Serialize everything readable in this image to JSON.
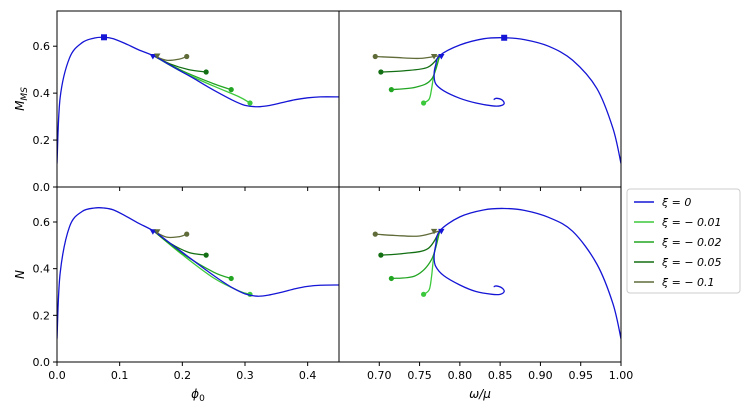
{
  "chart_data": {
    "type": "line",
    "layout": "2x2 grid, shared y per row, shared x per column",
    "colors": {
      "xi_0": "#1515d6",
      "xi_m0p01": "#3cc83c",
      "xi_m0p02": "#22a522",
      "xi_m0p05": "#136f13",
      "xi_m0p1": "#5f6b38"
    },
    "legend": {
      "placement": "right, between rows",
      "entries": [
        {
          "key": "xi_0",
          "label": "ξ = 0"
        },
        {
          "key": "xi_m0p01",
          "label": "ξ = − 0.01"
        },
        {
          "key": "xi_m0p02",
          "label": "ξ = − 0.02"
        },
        {
          "key": "xi_m0p05",
          "label": "ξ = − 0.05"
        },
        {
          "key": "xi_m0p1",
          "label": "ξ = − 0.1"
        }
      ]
    },
    "axes": {
      "phi0": {
        "label": "ϕ0",
        "xlim": [
          0,
          0.45
        ],
        "ticks": [
          "0.0",
          "0.1",
          "0.2",
          "0.3",
          "0.4"
        ],
        "tick_values": [
          0,
          0.1,
          0.2,
          0.3,
          0.4
        ]
      },
      "omega": {
        "label": "ω/μ",
        "xlim": [
          0.65,
          1.0
        ],
        "ticks": [
          "0.70",
          "0.75",
          "0.80",
          "0.85",
          "0.90",
          "0.95",
          "1.00"
        ],
        "tick_values": [
          0.7,
          0.75,
          0.8,
          0.85,
          0.9,
          0.95,
          1.0
        ]
      },
      "M": {
        "label": "M_MS",
        "ylim": [
          0,
          0.75
        ],
        "ticks": [
          "0.0",
          "0.2",
          "0.4",
          "0.6"
        ],
        "tick_values": [
          0,
          0.2,
          0.4,
          0.6
        ]
      },
      "N": {
        "label": "N",
        "ylim": [
          0,
          0.75
        ],
        "ticks": [
          "0.0",
          "0.2",
          "0.4",
          "0.6"
        ],
        "tick_values": [
          0,
          0.2,
          0.4,
          0.6
        ]
      }
    },
    "panels": [
      {
        "id": "top-left",
        "xaxis": "phi0",
        "yaxis": "M",
        "main_curve": {
          "key": "xi_0",
          "x": [
            0,
            0.005,
            0.02,
            0.04,
            0.06,
            0.075,
            0.09,
            0.11,
            0.13,
            0.155,
            0.18,
            0.2,
            0.22,
            0.24,
            0.26,
            0.28,
            0.3,
            0.32,
            0.34,
            0.36,
            0.38,
            0.4,
            0.42,
            0.45
          ],
          "y": [
            0.1,
            0.38,
            0.55,
            0.615,
            0.635,
            0.638,
            0.632,
            0.61,
            0.585,
            0.558,
            0.52,
            0.49,
            0.46,
            0.428,
            0.398,
            0.37,
            0.348,
            0.342,
            0.348,
            0.36,
            0.372,
            0.38,
            0.384,
            0.384
          ]
        },
        "branches": [
          {
            "key": "xi_m0p01",
            "x": [
              0.155,
              0.2,
              0.25,
              0.29,
              0.308
            ],
            "y": [
              0.558,
              0.49,
              0.43,
              0.385,
              0.358
            ]
          },
          {
            "key": "xi_m0p02",
            "x": [
              0.155,
              0.2,
              0.25,
              0.278
            ],
            "y": [
              0.558,
              0.495,
              0.44,
              0.415
            ]
          },
          {
            "key": "xi_m0p05",
            "x": [
              0.155,
              0.18,
              0.21,
              0.238
            ],
            "y": [
              0.558,
              0.525,
              0.5,
              0.49
            ]
          },
          {
            "key": "xi_m0p1",
            "x": [
              0.155,
              0.175,
              0.195,
              0.207
            ],
            "y": [
              0.558,
              0.54,
              0.545,
              0.556
            ]
          }
        ],
        "markers": [
          {
            "x": 0.075,
            "y": 0.638,
            "shape": "square",
            "key": "xi_0"
          },
          {
            "x": 0.153,
            "y": 0.556,
            "shape": "triangle",
            "key": "xi_0"
          },
          {
            "x": 0.16,
            "y": 0.558,
            "shape": "triangle",
            "key": "xi_m0p1"
          }
        ]
      },
      {
        "id": "top-right",
        "xaxis": "omega",
        "yaxis": "M",
        "main_curve": {
          "key": "xi_0",
          "x": [
            1.0,
            0.99,
            0.97,
            0.94,
            0.91,
            0.88,
            0.855,
            0.83,
            0.8,
            0.775,
            0.77,
            0.768,
            0.77,
            0.78,
            0.8,
            0.82,
            0.84,
            0.85,
            0.855,
            0.852,
            0.845,
            0.842
          ],
          "y": [
            0.1,
            0.25,
            0.42,
            0.54,
            0.6,
            0.628,
            0.636,
            0.632,
            0.605,
            0.56,
            0.52,
            0.48,
            0.44,
            0.41,
            0.378,
            0.358,
            0.346,
            0.346,
            0.356,
            0.372,
            0.378,
            0.372
          ]
        },
        "branches": [
          {
            "key": "xi_m0p01",
            "x": [
              0.775,
              0.768,
              0.765,
              0.762,
              0.755
            ],
            "y": [
              0.56,
              0.48,
              0.42,
              0.375,
              0.358
            ]
          },
          {
            "key": "xi_m0p02",
            "x": [
              0.775,
              0.765,
              0.745,
              0.715
            ],
            "y": [
              0.56,
              0.46,
              0.425,
              0.415
            ]
          },
          {
            "key": "xi_m0p05",
            "x": [
              0.775,
              0.76,
              0.73,
              0.702
            ],
            "y": [
              0.56,
              0.51,
              0.495,
              0.49
            ]
          },
          {
            "key": "xi_m0p1",
            "x": [
              0.775,
              0.75,
              0.72,
              0.695
            ],
            "y": [
              0.56,
              0.548,
              0.552,
              0.556
            ]
          }
        ],
        "markers": [
          {
            "x": 0.855,
            "y": 0.636,
            "shape": "square",
            "key": "xi_0"
          },
          {
            "x": 0.777,
            "y": 0.556,
            "shape": "triangle",
            "key": "xi_0"
          },
          {
            "x": 0.768,
            "y": 0.556,
            "shape": "triangle",
            "key": "xi_m0p1"
          }
        ]
      },
      {
        "id": "bottom-left",
        "xaxis": "phi0",
        "yaxis": "N",
        "main_curve": {
          "key": "xi_0",
          "x": [
            0,
            0.005,
            0.02,
            0.04,
            0.06,
            0.075,
            0.09,
            0.11,
            0.13,
            0.155,
            0.18,
            0.2,
            0.22,
            0.24,
            0.26,
            0.28,
            0.3,
            0.32,
            0.34,
            0.36,
            0.38,
            0.4,
            0.42,
            0.45
          ],
          "y": [
            0.1,
            0.38,
            0.58,
            0.645,
            0.66,
            0.66,
            0.652,
            0.625,
            0.595,
            0.56,
            0.51,
            0.47,
            0.43,
            0.39,
            0.352,
            0.318,
            0.292,
            0.282,
            0.288,
            0.3,
            0.314,
            0.324,
            0.329,
            0.33
          ]
        },
        "branches": [
          {
            "key": "xi_m0p01",
            "x": [
              0.155,
              0.2,
              0.25,
              0.29,
              0.308
            ],
            "y": [
              0.56,
              0.46,
              0.36,
              0.305,
              0.29
            ]
          },
          {
            "key": "xi_m0p02",
            "x": [
              0.155,
              0.2,
              0.25,
              0.278
            ],
            "y": [
              0.56,
              0.465,
              0.385,
              0.358
            ]
          },
          {
            "key": "xi_m0p05",
            "x": [
              0.155,
              0.18,
              0.21,
              0.238
            ],
            "y": [
              0.56,
              0.51,
              0.47,
              0.458
            ]
          },
          {
            "key": "xi_m0p1",
            "x": [
              0.155,
              0.175,
              0.195,
              0.207
            ],
            "y": [
              0.56,
              0.535,
              0.537,
              0.548
            ]
          }
        ],
        "markers": [
          {
            "x": 0.153,
            "y": 0.558,
            "shape": "triangle",
            "key": "xi_0"
          },
          {
            "x": 0.16,
            "y": 0.558,
            "shape": "triangle",
            "key": "xi_m0p1"
          }
        ]
      },
      {
        "id": "bottom-right",
        "xaxis": "omega",
        "yaxis": "N",
        "main_curve": {
          "key": "xi_0",
          "x": [
            1.0,
            0.99,
            0.97,
            0.94,
            0.91,
            0.88,
            0.855,
            0.83,
            0.8,
            0.775,
            0.77,
            0.768,
            0.77,
            0.78,
            0.8,
            0.82,
            0.84,
            0.85,
            0.855,
            0.852,
            0.845,
            0.842
          ],
          "y": [
            0.1,
            0.25,
            0.42,
            0.56,
            0.62,
            0.65,
            0.658,
            0.652,
            0.622,
            0.562,
            0.5,
            0.45,
            0.41,
            0.37,
            0.33,
            0.302,
            0.29,
            0.29,
            0.302,
            0.318,
            0.326,
            0.322
          ]
        },
        "branches": [
          {
            "key": "xi_m0p01",
            "x": [
              0.775,
              0.768,
              0.765,
              0.762,
              0.755
            ],
            "y": [
              0.562,
              0.46,
              0.37,
              0.31,
              0.29
            ]
          },
          {
            "key": "xi_m0p02",
            "x": [
              0.775,
              0.765,
              0.745,
              0.715
            ],
            "y": [
              0.562,
              0.44,
              0.37,
              0.358
            ]
          },
          {
            "key": "xi_m0p05",
            "x": [
              0.775,
              0.76,
              0.73,
              0.702
            ],
            "y": [
              0.562,
              0.485,
              0.465,
              0.458
            ]
          },
          {
            "key": "xi_m0p1",
            "x": [
              0.775,
              0.75,
              0.72,
              0.695
            ],
            "y": [
              0.562,
              0.54,
              0.542,
              0.548
            ]
          }
        ],
        "markers": [
          {
            "x": 0.777,
            "y": 0.56,
            "shape": "triangle",
            "key": "xi_0"
          },
          {
            "x": 0.768,
            "y": 0.56,
            "shape": "triangle",
            "key": "xi_m0p1"
          }
        ]
      }
    ]
  }
}
